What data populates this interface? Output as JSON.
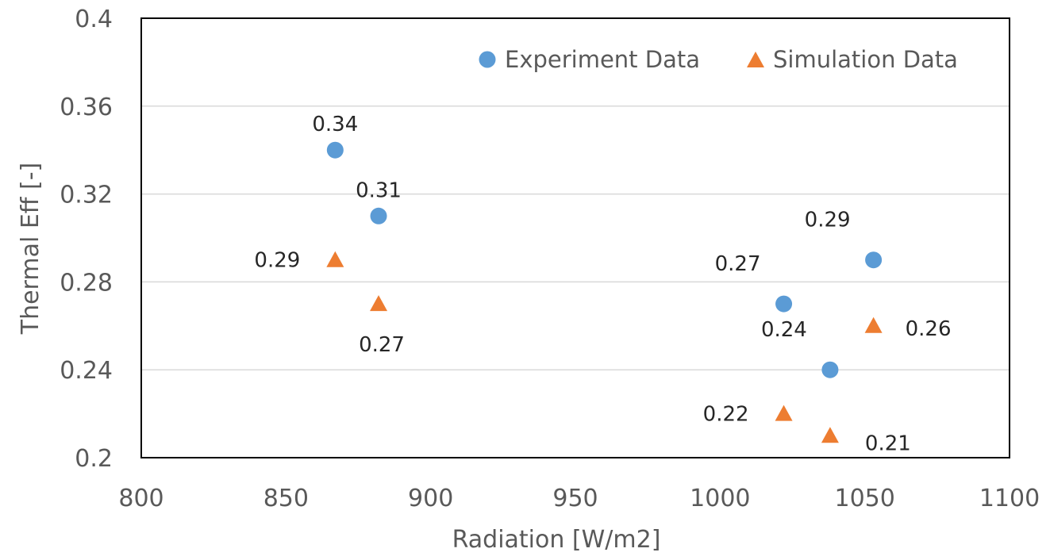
{
  "chart_data": {
    "type": "scatter",
    "xlabel": "Radiation [W/m2]",
    "ylabel": "Thermal Eff [-]",
    "xlim": [
      800,
      1100
    ],
    "ylim": [
      0.2,
      0.4
    ],
    "x_ticks": [
      "800",
      "850",
      "900",
      "950",
      "1000",
      "1050",
      "1100"
    ],
    "y_ticks": [
      "0.2",
      "0.24",
      "0.28",
      "0.32",
      "0.36",
      "0.4"
    ],
    "grid": "horizontal",
    "legend_position": "top-right",
    "series": [
      {
        "name": "Experiment Data",
        "marker": "circle",
        "color": "#5B9BD5",
        "points": [
          {
            "x": 867,
            "y": 0.34,
            "label": "0.34",
            "label_pos": "above"
          },
          {
            "x": 882,
            "y": 0.31,
            "label": "0.31",
            "label_pos": "above"
          },
          {
            "x": 1022,
            "y": 0.27,
            "label": "0.27",
            "label_pos": "above-left"
          },
          {
            "x": 1038,
            "y": 0.24,
            "label": "0.24",
            "label_pos": "above-left"
          },
          {
            "x": 1053,
            "y": 0.29,
            "label": "0.29",
            "label_pos": "above-left"
          }
        ]
      },
      {
        "name": "Simulation Data",
        "marker": "triangle",
        "color": "#ED7D31",
        "points": [
          {
            "x": 867,
            "y": 0.29,
            "label": "0.29",
            "label_pos": "left"
          },
          {
            "x": 882,
            "y": 0.27,
            "label": "0.27",
            "label_pos": "below"
          },
          {
            "x": 1022,
            "y": 0.22,
            "label": "0.22",
            "label_pos": "left"
          },
          {
            "x": 1038,
            "y": 0.21,
            "label": "0.21",
            "label_pos": "below-right"
          },
          {
            "x": 1053,
            "y": 0.26,
            "label": "0.26",
            "label_pos": "right"
          }
        ]
      }
    ]
  }
}
